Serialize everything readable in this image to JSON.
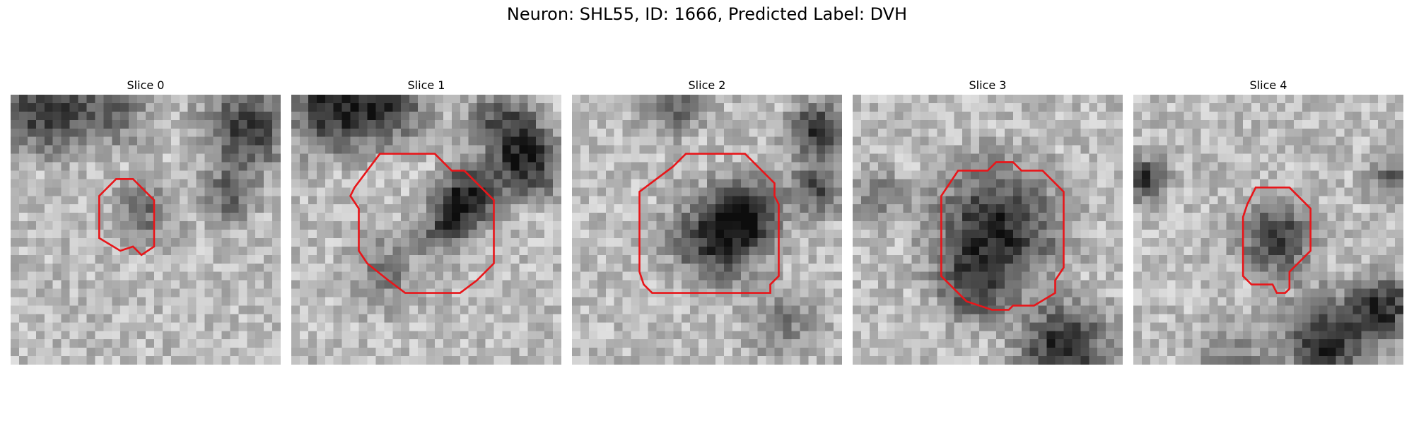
{
  "figure": {
    "title": "Neuron: SHL55, ID: 1666, Predicted Label: DVH",
    "contour_color": "#e8161a",
    "colormap": "grayscale",
    "grid_size": 32
  },
  "slices": [
    {
      "title": "Slice 0",
      "contour": [
        [
          12.5,
          10
        ],
        [
          14.5,
          10
        ],
        [
          17,
          12.5
        ],
        [
          17,
          18
        ],
        [
          15.5,
          19
        ],
        [
          14.5,
          18
        ],
        [
          13,
          18.5
        ],
        [
          10.5,
          17
        ],
        [
          10.5,
          12
        ]
      ]
    },
    {
      "title": "Slice 1",
      "contour": [
        [
          10.5,
          7
        ],
        [
          17,
          7
        ],
        [
          19,
          9
        ],
        [
          20.5,
          9
        ],
        [
          24,
          12.5
        ],
        [
          24,
          20
        ],
        [
          23,
          21
        ],
        [
          22,
          22
        ],
        [
          20,
          23.5
        ],
        [
          13.5,
          23.5
        ],
        [
          11.5,
          22
        ],
        [
          9,
          20
        ],
        [
          8,
          18.5
        ],
        [
          8,
          13.5
        ],
        [
          7,
          12
        ],
        [
          7.5,
          11
        ]
      ]
    },
    {
      "title": "Slice 2",
      "contour": [
        [
          12,
          8.5
        ],
        [
          13.5,
          7
        ],
        [
          20.5,
          7
        ],
        [
          24,
          10.5
        ],
        [
          24,
          12
        ],
        [
          24.5,
          13
        ],
        [
          24.5,
          21.5
        ],
        [
          23.5,
          22.5
        ],
        [
          23.5,
          23.5
        ],
        [
          9.5,
          23.5
        ],
        [
          8.5,
          22.5
        ],
        [
          8,
          21
        ],
        [
          8,
          11.5
        ]
      ]
    },
    {
      "title": "Slice 3",
      "contour": [
        [
          12.5,
          9
        ],
        [
          16,
          9
        ],
        [
          17,
          8
        ],
        [
          19,
          8
        ],
        [
          20,
          9
        ],
        [
          22.5,
          9
        ],
        [
          25,
          11.5
        ],
        [
          25,
          20.5
        ],
        [
          24,
          22
        ],
        [
          24,
          23.5
        ],
        [
          21.5,
          25
        ],
        [
          19,
          25
        ],
        [
          18.5,
          25.5
        ],
        [
          16.5,
          25.5
        ],
        [
          15,
          25
        ],
        [
          13.5,
          24.5
        ],
        [
          10.5,
          21.5
        ],
        [
          10.5,
          12
        ]
      ]
    },
    {
      "title": "Slice 4",
      "contour": [
        [
          14.5,
          11
        ],
        [
          18.5,
          11
        ],
        [
          21,
          13.5
        ],
        [
          21,
          18.5
        ],
        [
          20,
          19.5
        ],
        [
          18.5,
          21
        ],
        [
          18.5,
          23
        ],
        [
          18,
          23.5
        ],
        [
          17,
          23.5
        ],
        [
          16.5,
          22.5
        ],
        [
          14,
          22.5
        ],
        [
          13.5,
          22
        ],
        [
          13,
          21.5
        ],
        [
          13,
          14.5
        ],
        [
          13.5,
          13
        ]
      ]
    }
  ]
}
